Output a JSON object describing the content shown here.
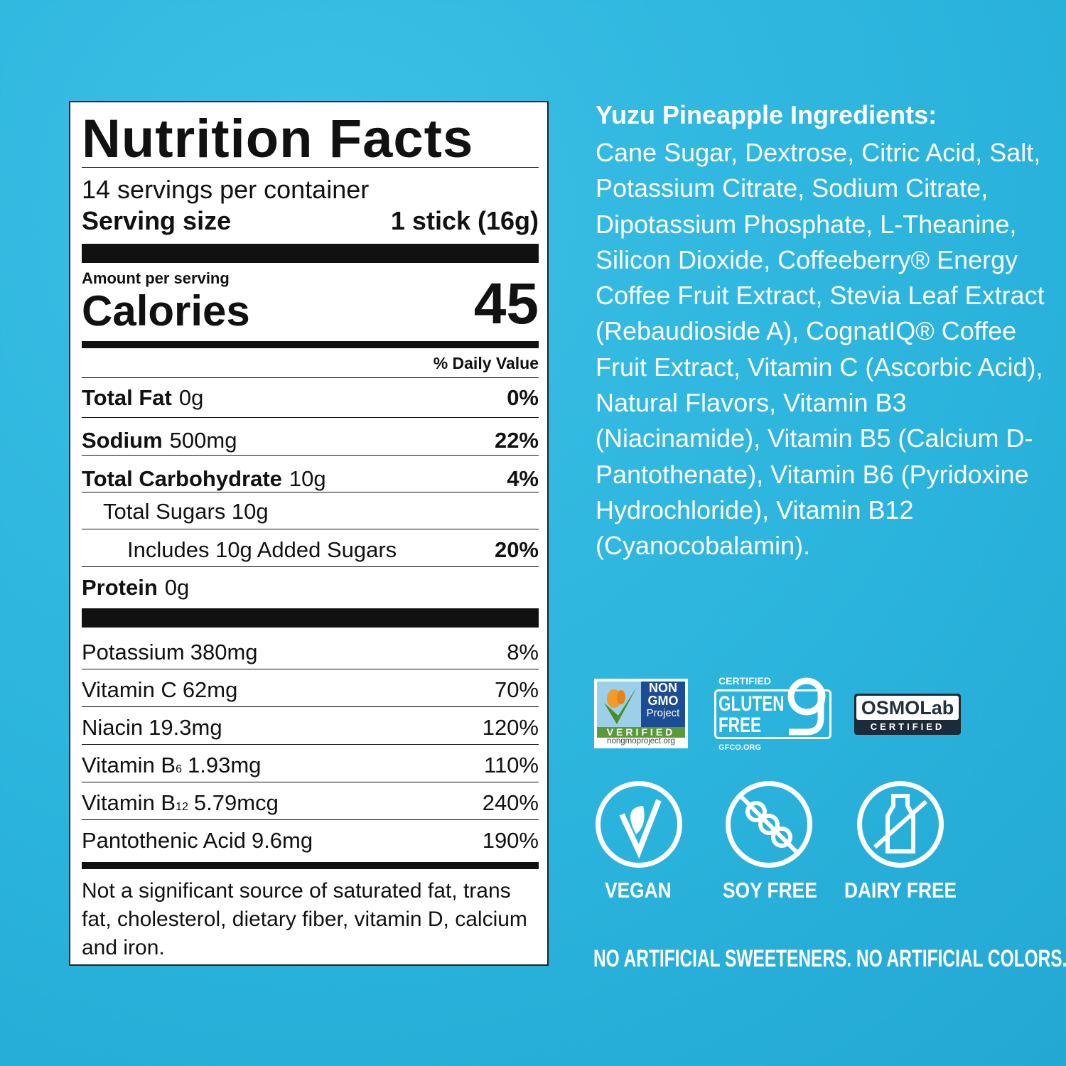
{
  "nutrition": {
    "title": "Nutrition Facts",
    "servings": "14 servings per container",
    "serving_size_label": "Serving size",
    "serving_size_value": "1 stick (16g)",
    "amount_per_serving": "Amount per serving",
    "calories_label": "Calories",
    "calories_value": "45",
    "daily_value_header": "% Daily Value",
    "main_rows": [
      {
        "name": "Total Fat",
        "amount": "0g",
        "dv": "0%"
      },
      {
        "name": "Sodium",
        "amount": "500mg",
        "dv": "22%"
      },
      {
        "name": "Total Carbohydrate",
        "amount": "10g",
        "dv": "4%"
      },
      {
        "name": "Total Sugars 10g",
        "amount": "",
        "dv": ""
      },
      {
        "name": "Includes 10g Added Sugars",
        "amount": "",
        "dv": "20%"
      },
      {
        "name": "Protein",
        "amount": "0g",
        "dv": ""
      }
    ],
    "micro_rows": [
      {
        "name": "Potassium",
        "amount": "380mg",
        "dv": "8%"
      },
      {
        "name": "Vitamin C",
        "amount": "62mg",
        "dv": "70%"
      },
      {
        "name": "Niacin",
        "amount": "19.3mg",
        "dv": "120%"
      },
      {
        "name": "Vitamin B",
        "sub": "6",
        "amount": "1.93mg",
        "dv": "110%"
      },
      {
        "name": "Vitamin B",
        "sub": "12",
        "amount": "5.79mcg",
        "dv": "240%"
      },
      {
        "name": "Pantothenic Acid",
        "amount": "9.6mg",
        "dv": "190%"
      }
    ],
    "footnote": "Not a significant source of saturated fat, trans fat, cholesterol, dietary fiber, vitamin D, calcium and iron."
  },
  "ingredients": {
    "heading": "Yuzu Pineapple Ingredients:",
    "text": "Cane Sugar, Dextrose, Citric Acid, Salt, Potassium Citrate, Sodium Citrate, Dipotassium Phosphate, L-Theanine, Silicon Dioxide, Coffeeberry® Energy Coffee Fruit Extract, Stevia Leaf Extract (Rebaudioside A), CognatIQ® Coffee Fruit Extract, Vitamin C (Ascorbic Acid), Natural Flavors, Vitamin B3 (Niacinamide), Vitamin B5 (Calcium D-Pantothenate), Vitamin B6 (Pyridoxine Hydrochloride), Vitamin B12 (Cyanocobalamin)."
  },
  "certifications": {
    "nongmo": {
      "line1": "NON",
      "line2": "GMO",
      "line3": "Project",
      "verified": "VERIFIED",
      "url": "nongmoproject.org"
    },
    "gluten": {
      "certified": "CERTIFIED",
      "line1": "GLUTEN",
      "line2": "FREE",
      "url": "GFCO.ORG"
    },
    "osmo": {
      "name": "OSMOLab",
      "certified": "CERTIFIED"
    }
  },
  "claims": [
    {
      "label": "VEGAN",
      "icon": "leaf-v-icon"
    },
    {
      "label": "SOY FREE",
      "icon": "no-soy-icon"
    },
    {
      "label": "DAIRY FREE",
      "icon": "no-milk-bottle-icon"
    }
  ],
  "tagline": "NO ARTIFICIAL SWEETENERS. NO ARTIFICIAL COLORS.",
  "colors": {
    "background": "#2ab3dc",
    "label": "#ffffff",
    "text": "#111111"
  }
}
